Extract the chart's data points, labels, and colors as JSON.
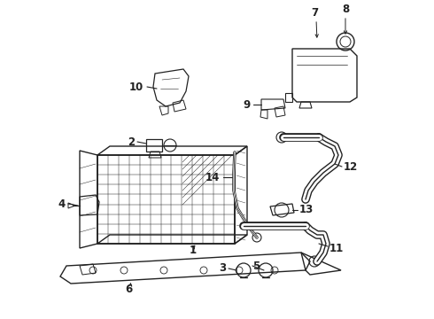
{
  "bg_color": "#ffffff",
  "line_color": "#222222",
  "label_color": "#000000",
  "font_size": 8.5
}
